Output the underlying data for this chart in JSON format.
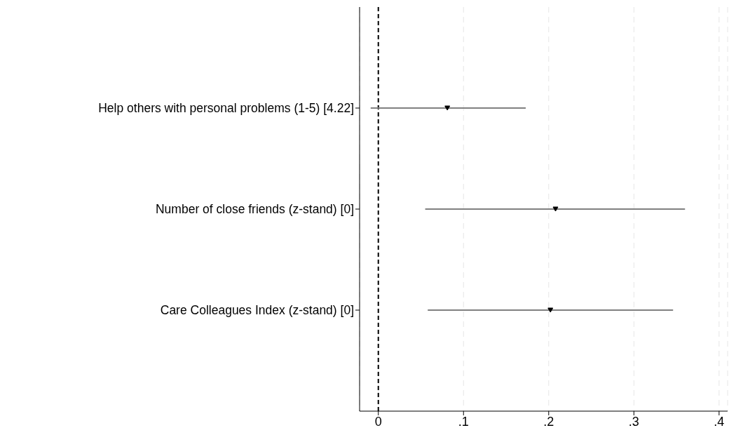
{
  "chart_data": {
    "type": "scatter",
    "orientation": "horizontal",
    "categories": [
      "Help others with personal problems (1-5) [4.22]",
      "Number of close friends (z-stand) [0]",
      "Care Colleagues Index (z-stand) [0]"
    ],
    "values": [
      0.081,
      0.208,
      0.202
    ],
    "errors": [
      [
        -0.009,
        0.173
      ],
      [
        0.055,
        0.36
      ],
      [
        0.058,
        0.346
      ]
    ],
    "color": "#000000",
    "marker": "triangle",
    "xlim": [
      -0.022,
      0.41
    ],
    "xticks": [
      0,
      {
        "value": 0.1,
        "label": ".1"
      },
      {
        "value": 0.2,
        "label": ".2"
      },
      {
        "value": 0.3,
        "label": ".3"
      },
      {
        "value": 0.4,
        "label": ".4"
      }
    ],
    "grid": "x",
    "ref_lines": [
      {
        "axis": "x",
        "value": 0,
        "color": "#000000",
        "line_style": "dashed"
      }
    ]
  }
}
